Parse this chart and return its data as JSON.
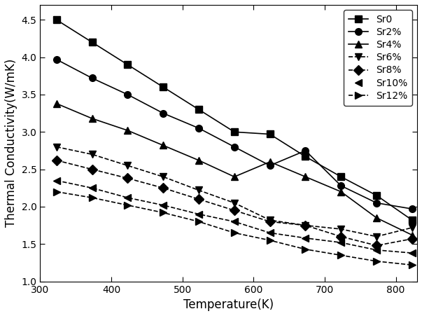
{
  "title": "",
  "xlabel": "Temperature(K)",
  "ylabel": "Thermal Conductivity(W/mK)",
  "xlim": [
    300,
    830
  ],
  "ylim": [
    1.0,
    4.7
  ],
  "series": [
    {
      "label": "Sr0",
      "marker": "s",
      "linestyle": "-",
      "color": "#000000",
      "x": [
        323,
        373,
        423,
        473,
        523,
        573,
        623,
        673,
        723,
        773,
        823
      ],
      "y": [
        4.5,
        4.2,
        3.9,
        3.6,
        3.3,
        3.0,
        2.97,
        2.67,
        2.4,
        2.15,
        1.82
      ]
    },
    {
      "label": "Sr2%",
      "marker": "o",
      "linestyle": "-",
      "color": "#000000",
      "x": [
        323,
        373,
        423,
        473,
        523,
        573,
        623,
        673,
        723,
        773,
        823
      ],
      "y": [
        3.97,
        3.72,
        3.5,
        3.25,
        3.05,
        2.8,
        2.55,
        2.75,
        2.28,
        2.05,
        1.97
      ]
    },
    {
      "label": "Sr4%",
      "marker": "^",
      "linestyle": "-",
      "color": "#000000",
      "x": [
        323,
        373,
        423,
        473,
        523,
        573,
        623,
        673,
        723,
        773,
        823
      ],
      "y": [
        3.38,
        3.18,
        3.02,
        2.82,
        2.62,
        2.4,
        2.6,
        2.4,
        2.2,
        1.85,
        1.62
      ]
    },
    {
      "label": "Sr6%",
      "marker": "v",
      "linestyle": "--",
      "color": "#000000",
      "x": [
        323,
        373,
        423,
        473,
        523,
        573,
        623,
        673,
        723,
        773,
        823
      ],
      "y": [
        2.8,
        2.7,
        2.55,
        2.4,
        2.22,
        2.05,
        1.82,
        1.75,
        1.7,
        1.6,
        1.72
      ]
    },
    {
      "label": "Sr8%",
      "marker": "D",
      "linestyle": "--",
      "color": "#000000",
      "x": [
        323,
        373,
        423,
        473,
        523,
        573,
        623,
        673,
        723,
        773,
        823
      ],
      "y": [
        2.62,
        2.5,
        2.38,
        2.25,
        2.1,
        1.95,
        1.8,
        1.75,
        1.6,
        1.48,
        1.57
      ]
    },
    {
      "label": "Sr10%",
      "marker": "<",
      "linestyle": "--",
      "color": "#000000",
      "no_legend_line": true,
      "x": [
        323,
        373,
        423,
        473,
        523,
        573,
        623,
        673,
        723,
        773,
        823
      ],
      "y": [
        2.35,
        2.25,
        2.12,
        2.02,
        1.9,
        1.8,
        1.65,
        1.58,
        1.52,
        1.42,
        1.38
      ]
    },
    {
      "label": "Sr12%",
      "marker": ">",
      "linestyle": "--",
      "color": "#000000",
      "x": [
        323,
        373,
        423,
        473,
        523,
        573,
        623,
        673,
        723,
        773,
        823
      ],
      "y": [
        2.2,
        2.12,
        2.02,
        1.92,
        1.8,
        1.65,
        1.55,
        1.43,
        1.35,
        1.27,
        1.22
      ]
    }
  ],
  "xticks": [
    300,
    400,
    500,
    600,
    700,
    800
  ],
  "yticks": [
    1.0,
    1.5,
    2.0,
    2.5,
    3.0,
    3.5,
    4.0,
    4.5
  ],
  "legend_loc": "upper right",
  "markersize": 7,
  "linewidth": 1.2
}
